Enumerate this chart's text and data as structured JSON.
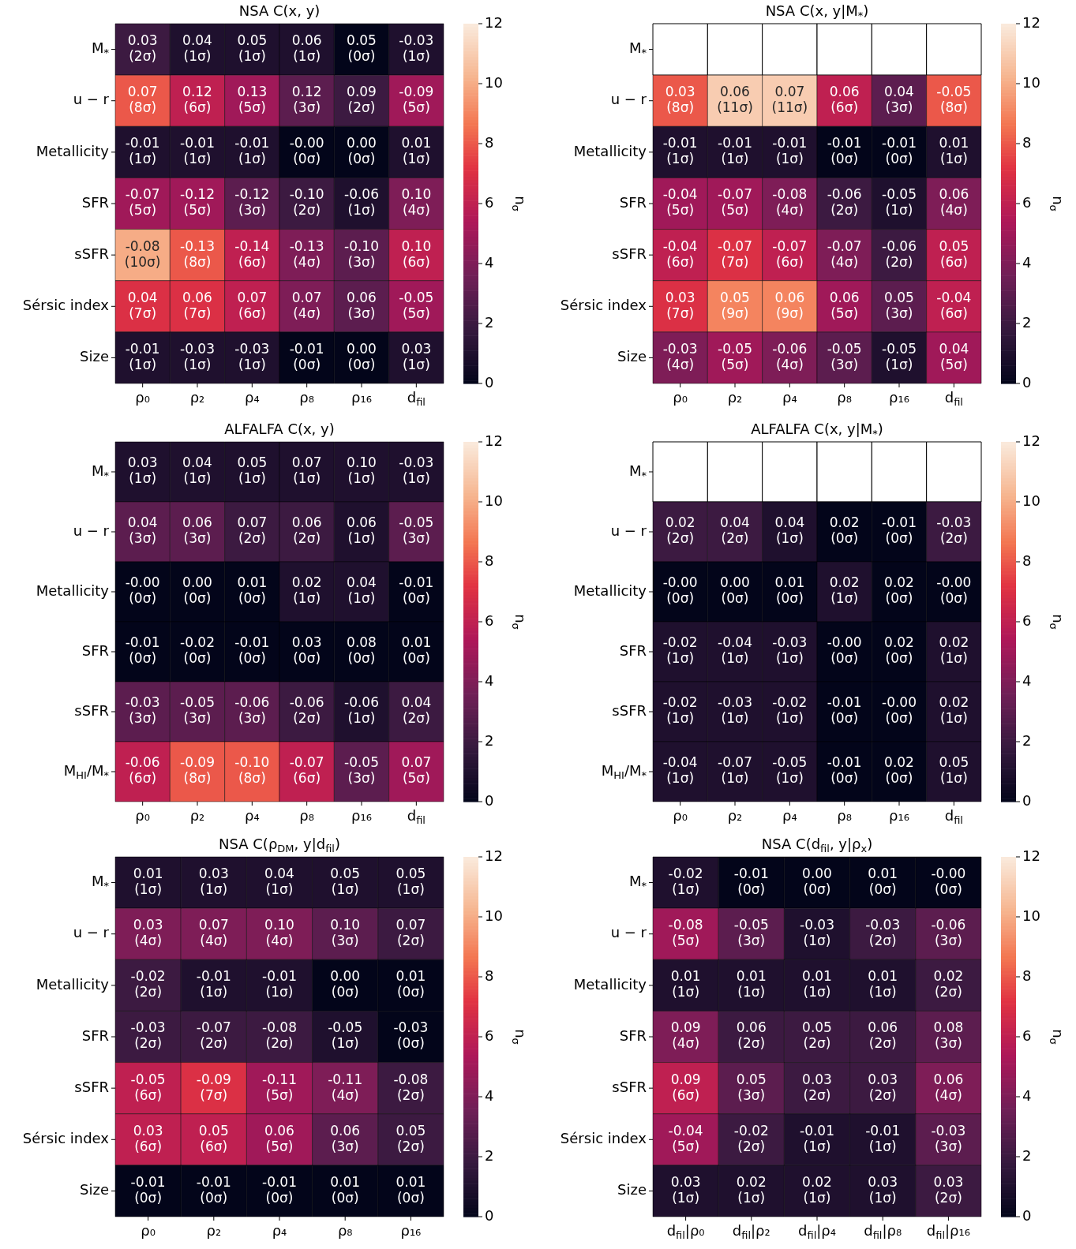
{
  "chart_data": [
    {
      "type": "heatmap",
      "title": "NSA C(x, y)",
      "clabel": "n$_{σ}$",
      "clim": [
        0,
        12
      ],
      "cticks": [
        0,
        2,
        4,
        6,
        8,
        10,
        12
      ],
      "categories": [
        "ρ₀",
        "ρ₂",
        "ρ₄",
        "ρ₈",
        "ρ₁₆",
        "d$_{fil}$"
      ],
      "y_categories": [
        "M$_{*}$",
        "u − r",
        "Metallicity",
        "SFR",
        "sSFR",
        "Sérsic index",
        "Size"
      ],
      "cells": [
        [
          2,
          1,
          1,
          1,
          0,
          1
        ],
        [
          8,
          6,
          5,
          3,
          2,
          5
        ],
        [
          1,
          1,
          1,
          0,
          0,
          1
        ],
        [
          5,
          5,
          3,
          2,
          1,
          4
        ],
        [
          10,
          8,
          6,
          4,
          3,
          6
        ],
        [
          7,
          7,
          6,
          4,
          3,
          5
        ],
        [
          1,
          1,
          1,
          0,
          0,
          1
        ]
      ],
      "cell_labels": [
        [
          "0.03\n(2σ)",
          "0.04\n(1σ)",
          "0.05\n(1σ)",
          "0.06\n(1σ)",
          "0.05\n(0σ)",
          "-0.03\n(1σ)"
        ],
        [
          "0.07\n(8σ)",
          "0.12\n(6σ)",
          "0.13\n(5σ)",
          "0.12\n(3σ)",
          "0.09\n(2σ)",
          "-0.09\n(5σ)"
        ],
        [
          "-0.01\n(1σ)",
          "-0.01\n(1σ)",
          "-0.01\n(1σ)",
          "-0.00\n(0σ)",
          "0.00\n(0σ)",
          "0.01\n(1σ)"
        ],
        [
          "-0.07\n(5σ)",
          "-0.12\n(5σ)",
          "-0.12\n(3σ)",
          "-0.10\n(2σ)",
          "-0.06\n(1σ)",
          "0.10\n(4σ)"
        ],
        [
          "-0.08\n(10σ)",
          "-0.13\n(8σ)",
          "-0.14\n(6σ)",
          "-0.13\n(4σ)",
          "-0.10\n(3σ)",
          "0.10\n(6σ)"
        ],
        [
          "0.04\n(7σ)",
          "0.06\n(7σ)",
          "0.07\n(6σ)",
          "0.07\n(4σ)",
          "0.06\n(3σ)",
          "-0.05\n(5σ)"
        ],
        [
          "-0.01\n(1σ)",
          "-0.03\n(1σ)",
          "-0.03\n(1σ)",
          "-0.01\n(0σ)",
          "0.00\n(0σ)",
          "0.03\n(1σ)"
        ]
      ]
    },
    {
      "type": "heatmap",
      "title": "NSA C(x, y|M$_{*}$)",
      "clabel": "n$_{σ}$",
      "clim": [
        0,
        12
      ],
      "cticks": [
        0,
        2,
        4,
        6,
        8,
        10,
        12
      ],
      "categories": [
        "ρ₀",
        "ρ₂",
        "ρ₄",
        "ρ₈",
        "ρ₁₆",
        "d$_{fil}$"
      ],
      "y_categories": [
        "M$_{*}$",
        "u − r",
        "Metallicity",
        "SFR",
        "sSFR",
        "Sérsic index",
        "Size"
      ],
      "cells": [
        [
          null,
          null,
          null,
          null,
          null,
          null
        ],
        [
          8,
          11,
          11,
          6,
          3,
          8
        ],
        [
          1,
          1,
          1,
          0,
          0,
          1
        ],
        [
          5,
          5,
          4,
          2,
          1,
          4
        ],
        [
          6,
          7,
          6,
          4,
          2,
          6
        ],
        [
          7,
          9,
          9,
          5,
          3,
          6
        ],
        [
          4,
          5,
          4,
          3,
          1,
          5
        ]
      ],
      "cell_labels": [
        [
          null,
          null,
          null,
          null,
          null,
          null
        ],
        [
          "0.03\n(8σ)",
          "0.06\n(11σ)",
          "0.07\n(11σ)",
          "0.06\n(6σ)",
          "0.04\n(3σ)",
          "-0.05\n(8σ)"
        ],
        [
          "-0.01\n(1σ)",
          "-0.01\n(1σ)",
          "-0.01\n(1σ)",
          "-0.01\n(0σ)",
          "-0.01\n(0σ)",
          "0.01\n(1σ)"
        ],
        [
          "-0.04\n(5σ)",
          "-0.07\n(5σ)",
          "-0.08\n(4σ)",
          "-0.06\n(2σ)",
          "-0.05\n(1σ)",
          "0.06\n(4σ)"
        ],
        [
          "-0.04\n(6σ)",
          "-0.07\n(7σ)",
          "-0.07\n(6σ)",
          "-0.07\n(4σ)",
          "-0.06\n(2σ)",
          "0.05\n(6σ)"
        ],
        [
          "0.03\n(7σ)",
          "0.05\n(9σ)",
          "0.06\n(9σ)",
          "0.06\n(5σ)",
          "0.05\n(3σ)",
          "-0.04\n(6σ)"
        ],
        [
          "-0.03\n(4σ)",
          "-0.05\n(5σ)",
          "-0.06\n(4σ)",
          "-0.05\n(3σ)",
          "-0.05\n(1σ)",
          "0.04\n(5σ)"
        ]
      ]
    },
    {
      "type": "heatmap",
      "title": "ALFALFA C(x, y)",
      "clabel": "n$_{σ}$",
      "clim": [
        0,
        12
      ],
      "cticks": [
        0,
        2,
        4,
        6,
        8,
        10,
        12
      ],
      "categories": [
        "ρ₀",
        "ρ₂",
        "ρ₄",
        "ρ₈",
        "ρ₁₆",
        "d$_{fil}$"
      ],
      "y_categories": [
        "M$_{*}$",
        "u − r",
        "Metallicity",
        "SFR",
        "sSFR",
        "M$_{HI}$/M$_{*}$"
      ],
      "cells": [
        [
          1,
          1,
          1,
          1,
          1,
          1
        ],
        [
          3,
          3,
          2,
          2,
          1,
          3
        ],
        [
          0,
          0,
          0,
          1,
          1,
          0
        ],
        [
          0,
          0,
          0,
          0,
          0,
          0
        ],
        [
          3,
          3,
          3,
          2,
          1,
          2
        ],
        [
          6,
          8,
          8,
          6,
          3,
          5
        ]
      ],
      "cell_labels": [
        [
          "0.03\n(1σ)",
          "0.04\n(1σ)",
          "0.05\n(1σ)",
          "0.07\n(1σ)",
          "0.10\n(1σ)",
          "-0.03\n(1σ)"
        ],
        [
          "0.04\n(3σ)",
          "0.06\n(3σ)",
          "0.07\n(2σ)",
          "0.06\n(2σ)",
          "0.06\n(1σ)",
          "-0.05\n(3σ)"
        ],
        [
          "-0.00\n(0σ)",
          "0.00\n(0σ)",
          "0.01\n(0σ)",
          "0.02\n(1σ)",
          "0.04\n(1σ)",
          "-0.01\n(0σ)"
        ],
        [
          "-0.01\n(0σ)",
          "-0.02\n(0σ)",
          "-0.01\n(0σ)",
          "0.03\n(0σ)",
          "0.08\n(0σ)",
          "0.01\n(0σ)"
        ],
        [
          "-0.03\n(3σ)",
          "-0.05\n(3σ)",
          "-0.06\n(3σ)",
          "-0.06\n(2σ)",
          "-0.06\n(1σ)",
          "0.04\n(2σ)"
        ],
        [
          "-0.06\n(6σ)",
          "-0.09\n(8σ)",
          "-0.10\n(8σ)",
          "-0.07\n(6σ)",
          "-0.05\n(3σ)",
          "0.07\n(5σ)"
        ]
      ]
    },
    {
      "type": "heatmap",
      "title": "ALFALFA C(x, y|M$_{*}$)",
      "clabel": "n$_{σ}$",
      "clim": [
        0,
        12
      ],
      "cticks": [
        0,
        2,
        4,
        6,
        8,
        10,
        12
      ],
      "categories": [
        "ρ₀",
        "ρ₂",
        "ρ₄",
        "ρ₈",
        "ρ₁₆",
        "d$_{fil}$"
      ],
      "y_categories": [
        "M$_{*}$",
        "u − r",
        "Metallicity",
        "SFR",
        "sSFR",
        "M$_{HI}$/M$_{*}$"
      ],
      "cells": [
        [
          null,
          null,
          null,
          null,
          null,
          null
        ],
        [
          2,
          2,
          1,
          0,
          0,
          2
        ],
        [
          0,
          0,
          0,
          1,
          0,
          0
        ],
        [
          1,
          1,
          1,
          0,
          0,
          1
        ],
        [
          1,
          1,
          1,
          0,
          0,
          1
        ],
        [
          1,
          1,
          1,
          0,
          0,
          1
        ]
      ],
      "cell_labels": [
        [
          null,
          null,
          null,
          null,
          null,
          null
        ],
        [
          "0.02\n(2σ)",
          "0.04\n(2σ)",
          "0.04\n(1σ)",
          "0.02\n(0σ)",
          "-0.01\n(0σ)",
          "-0.03\n(2σ)"
        ],
        [
          "-0.00\n(0σ)",
          "0.00\n(0σ)",
          "0.01\n(0σ)",
          "0.02\n(1σ)",
          "0.02\n(0σ)",
          "-0.00\n(0σ)"
        ],
        [
          "-0.02\n(1σ)",
          "-0.04\n(1σ)",
          "-0.03\n(1σ)",
          "-0.00\n(0σ)",
          "0.02\n(0σ)",
          "0.02\n(1σ)"
        ],
        [
          "-0.02\n(1σ)",
          "-0.03\n(1σ)",
          "-0.02\n(1σ)",
          "-0.01\n(0σ)",
          "-0.00\n(0σ)",
          "0.02\n(1σ)"
        ],
        [
          "-0.04\n(1σ)",
          "-0.07\n(1σ)",
          "-0.05\n(1σ)",
          "-0.01\n(0σ)",
          "0.02\n(0σ)",
          "0.05\n(1σ)"
        ]
      ]
    },
    {
      "type": "heatmap",
      "title": "NSA C(ρ$_{DM}$, y|d$_{fil}$)",
      "clabel": "n$_{σ}$",
      "clim": [
        0,
        12
      ],
      "cticks": [
        0,
        2,
        4,
        6,
        8,
        10,
        12
      ],
      "categories": [
        "ρ₀",
        "ρ₂",
        "ρ₄",
        "ρ₈",
        "ρ₁₆"
      ],
      "y_categories": [
        "M$_{*}$",
        "u − r",
        "Metallicity",
        "SFR",
        "sSFR",
        "Sérsic index",
        "Size"
      ],
      "cells": [
        [
          1,
          1,
          1,
          1,
          1
        ],
        [
          4,
          4,
          4,
          3,
          2
        ],
        [
          2,
          1,
          1,
          0,
          0
        ],
        [
          2,
          2,
          2,
          1,
          0
        ],
        [
          6,
          7,
          5,
          4,
          2
        ],
        [
          6,
          6,
          5,
          3,
          2
        ],
        [
          0,
          0,
          0,
          0,
          0
        ]
      ],
      "cell_labels": [
        [
          "0.01\n(1σ)",
          "0.03\n(1σ)",
          "0.04\n(1σ)",
          "0.05\n(1σ)",
          "0.05\n(1σ)"
        ],
        [
          "0.03\n(4σ)",
          "0.07\n(4σ)",
          "0.10\n(4σ)",
          "0.10\n(3σ)",
          "0.07\n(2σ)"
        ],
        [
          "-0.02\n(2σ)",
          "-0.01\n(1σ)",
          "-0.01\n(1σ)",
          "0.00\n(0σ)",
          "0.01\n(0σ)"
        ],
        [
          "-0.03\n(2σ)",
          "-0.07\n(2σ)",
          "-0.08\n(2σ)",
          "-0.05\n(1σ)",
          "-0.03\n(0σ)"
        ],
        [
          "-0.05\n(6σ)",
          "-0.09\n(7σ)",
          "-0.11\n(5σ)",
          "-0.11\n(4σ)",
          "-0.08\n(2σ)"
        ],
        [
          "0.03\n(6σ)",
          "0.05\n(6σ)",
          "0.06\n(5σ)",
          "0.06\n(3σ)",
          "0.05\n(2σ)"
        ],
        [
          "-0.01\n(0σ)",
          "-0.01\n(0σ)",
          "-0.01\n(0σ)",
          "0.01\n(0σ)",
          "0.01\n(0σ)"
        ]
      ]
    },
    {
      "type": "heatmap",
      "title": "NSA C(d$_{fil}$, y|ρ$_{x}$)",
      "clabel": "n$_{σ}$",
      "clim": [
        0,
        12
      ],
      "cticks": [
        0,
        2,
        4,
        6,
        8,
        10,
        12
      ],
      "categories": [
        "d$_{fil}$|ρ₀",
        "d$_{fil}$|ρ₂",
        "d$_{fil}$|ρ₄",
        "d$_{fil}$|ρ₈",
        "d$_{fil}$|ρ₁₆"
      ],
      "y_categories": [
        "M$_{*}$",
        "u − r",
        "Metallicity",
        "SFR",
        "sSFR",
        "Sérsic index",
        "Size"
      ],
      "cells": [
        [
          1,
          0,
          0,
          0,
          0
        ],
        [
          5,
          3,
          1,
          2,
          3
        ],
        [
          1,
          1,
          1,
          1,
          2
        ],
        [
          4,
          2,
          2,
          2,
          3
        ],
        [
          6,
          3,
          2,
          2,
          4
        ],
        [
          5,
          2,
          1,
          1,
          3
        ],
        [
          1,
          1,
          1,
          1,
          2
        ]
      ],
      "cell_labels": [
        [
          "-0.02\n(1σ)",
          "-0.01\n(0σ)",
          "0.00\n(0σ)",
          "0.01\n(0σ)",
          "-0.00\n(0σ)"
        ],
        [
          "-0.08\n(5σ)",
          "-0.05\n(3σ)",
          "-0.03\n(1σ)",
          "-0.03\n(2σ)",
          "-0.06\n(3σ)"
        ],
        [
          "0.01\n(1σ)",
          "0.01\n(1σ)",
          "0.01\n(1σ)",
          "0.01\n(1σ)",
          "0.02\n(2σ)"
        ],
        [
          "0.09\n(4σ)",
          "0.06\n(2σ)",
          "0.05\n(2σ)",
          "0.06\n(2σ)",
          "0.08\n(3σ)"
        ],
        [
          "0.09\n(6σ)",
          "0.05\n(3σ)",
          "0.03\n(2σ)",
          "0.03\n(2σ)",
          "0.06\n(4σ)"
        ],
        [
          "-0.04\n(5σ)",
          "-0.02\n(2σ)",
          "-0.01\n(1σ)",
          "-0.01\n(1σ)",
          "-0.03\n(3σ)"
        ],
        [
          "0.03\n(1σ)",
          "0.02\n(1σ)",
          "0.02\n(1σ)",
          "0.03\n(1σ)",
          "0.03\n(2σ)"
        ]
      ]
    }
  ]
}
